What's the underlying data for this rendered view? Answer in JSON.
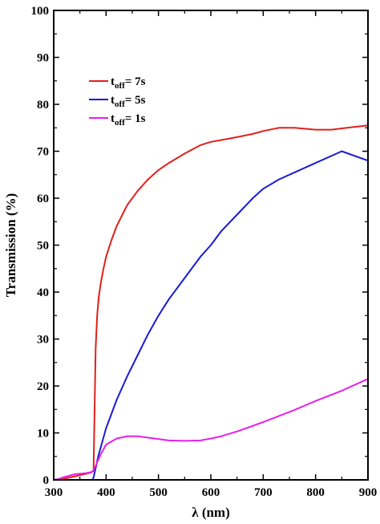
{
  "chart_data": {
    "type": "line",
    "title": "",
    "xlabel": "λ (nm)",
    "ylabel": "Transmission (%)",
    "xlim": [
      300,
      900
    ],
    "ylim": [
      0,
      100
    ],
    "xticks": [
      "300",
      "400",
      "500",
      "600",
      "700",
      "800",
      "900"
    ],
    "yticks": [
      "0",
      "10",
      "20",
      "30",
      "40",
      "50",
      "60",
      "70",
      "80",
      "90",
      "100"
    ],
    "grid": false,
    "legend_position": "top-left",
    "series": [
      {
        "name": "t_off = 7s",
        "label_main": "t",
        "label_sub": "off",
        "label_rest": "= 7s",
        "color": "#e0201b",
        "x": [
          300,
          310,
          330,
          350,
          370,
          376,
          378,
          380,
          383,
          386,
          390,
          395,
          400,
          410,
          420,
          440,
          460,
          480,
          500,
          520,
          550,
          580,
          600,
          620,
          650,
          680,
          700,
          730,
          760,
          800,
          830,
          860,
          900
        ],
        "y": [
          0,
          0,
          0.5,
          1,
          1.5,
          2,
          15,
          28,
          35,
          39,
          42,
          45,
          47.5,
          51,
          54,
          58.5,
          61.5,
          64,
          66,
          67.5,
          69.5,
          71.3,
          72,
          72.4,
          73,
          73.7,
          74.3,
          75,
          75,
          74.6,
          74.6,
          75,
          75.5
        ]
      },
      {
        "name": "t_off = 5s",
        "label_main": "t",
        "label_sub": "off",
        "label_rest": "= 5s",
        "color": "#1a1ad6",
        "x": [
          300,
          350,
          370,
          374,
          376,
          378,
          380,
          385,
          390,
          400,
          410,
          420,
          440,
          460,
          480,
          500,
          520,
          550,
          580,
          600,
          620,
          650,
          680,
          700,
          730,
          760,
          800,
          850,
          900
        ],
        "y": [
          0,
          0,
          0,
          0,
          0.5,
          1.5,
          2.5,
          5,
          7,
          11,
          14,
          17,
          22,
          26.5,
          31,
          35,
          38.5,
          43,
          47.5,
          50,
          53,
          56.5,
          60,
          62,
          64,
          65.5,
          67.5,
          70,
          68
        ]
      },
      {
        "name": "t_off = 1s",
        "label_main": "t",
        "label_sub": "off",
        "label_rest": "= 1s",
        "color": "#e81ee8",
        "x": [
          300,
          310,
          320,
          340,
          360,
          370,
          375,
          380,
          390,
          400,
          420,
          440,
          460,
          480,
          500,
          520,
          550,
          580,
          600,
          620,
          650,
          680,
          700,
          730,
          760,
          800,
          850,
          900
        ],
        "y": [
          0,
          0.2,
          0.6,
          1.2,
          1.4,
          1.6,
          1.8,
          3,
          5.5,
          7.5,
          8.8,
          9.3,
          9.3,
          9,
          8.7,
          8.4,
          8.3,
          8.4,
          8.8,
          9.3,
          10.3,
          11.5,
          12.3,
          13.6,
          14.9,
          16.8,
          19,
          21.5
        ]
      }
    ]
  }
}
